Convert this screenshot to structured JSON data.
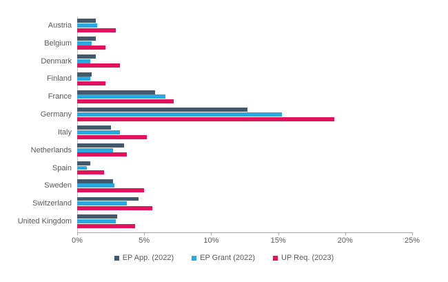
{
  "chart_data": {
    "type": "bar",
    "orientation": "horizontal",
    "title": "",
    "xlabel": "",
    "ylabel": "",
    "xlim": [
      0,
      25
    ],
    "x_tick_values": [
      0,
      5,
      10,
      15,
      20,
      25
    ],
    "x_tick_labels": [
      "0%",
      "5%",
      "10%",
      "15%",
      "20%",
      "25%"
    ],
    "grid": false,
    "legend_position": "bottom",
    "categories": [
      "Austria",
      "Belgium",
      "Denmark",
      "Finland",
      "France",
      "Germany",
      "Italy",
      "Netherlands",
      "Spain",
      "Sweden",
      "Switzerland",
      "United Kingdom"
    ],
    "series": [
      {
        "name": "EP App. (2022)",
        "color": "#44596C",
        "values": [
          1.4,
          1.4,
          1.4,
          1.1,
          5.8,
          12.7,
          2.5,
          3.5,
          1.0,
          2.7,
          4.6,
          3.0
        ]
      },
      {
        "name": "EP Grant (2022)",
        "color": "#29A9E0",
        "values": [
          1.5,
          1.1,
          1.0,
          1.0,
          6.6,
          15.3,
          3.2,
          2.7,
          0.7,
          2.8,
          3.7,
          2.9
        ]
      },
      {
        "name": "UP Req. (2023)",
        "color": "#E3125C",
        "values": [
          2.9,
          2.1,
          3.2,
          2.1,
          7.2,
          19.2,
          5.2,
          3.7,
          2.0,
          5.0,
          5.6,
          4.3
        ]
      }
    ]
  },
  "colors": {
    "axis_line": "#a6a6a6",
    "y_axis_line": "#bfbfbf",
    "label_text": "#595959",
    "background": "#ffffff"
  }
}
